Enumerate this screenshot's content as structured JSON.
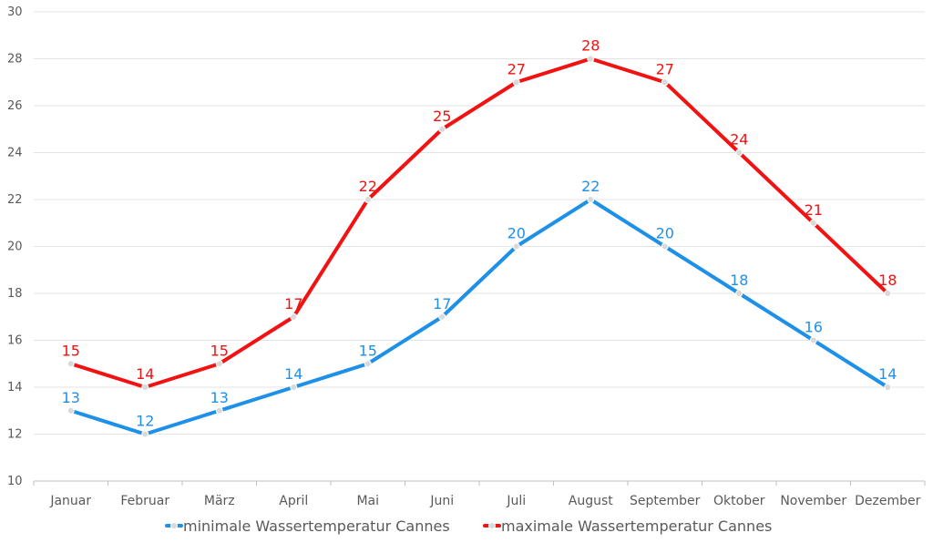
{
  "chart_data": {
    "type": "line",
    "categories": [
      "Januar",
      "Februar",
      "März",
      "April",
      "Mai",
      "Juni",
      "Juli",
      "August",
      "September",
      "Oktober",
      "November",
      "Dezember"
    ],
    "series": [
      {
        "name": "minimale Wassertemperatur Cannes",
        "color": "#1E90E8",
        "values": [
          13,
          12,
          13,
          14,
          15,
          17,
          20,
          22,
          20,
          18,
          16,
          14
        ]
      },
      {
        "name": "maximale Wassertemperatur Cannes",
        "color": "#F21212",
        "values": [
          15,
          14,
          15,
          17,
          22,
          25,
          27,
          28,
          27,
          24,
          21,
          18
        ]
      }
    ],
    "title": "",
    "xlabel": "",
    "ylabel": "",
    "ylim": [
      10,
      30
    ],
    "yticks": [
      "10",
      "12",
      "14",
      "16",
      "18",
      "20",
      "22",
      "24",
      "26",
      "28",
      "30"
    ],
    "grid": true,
    "data_labels": true,
    "legend_position": "bottom"
  }
}
